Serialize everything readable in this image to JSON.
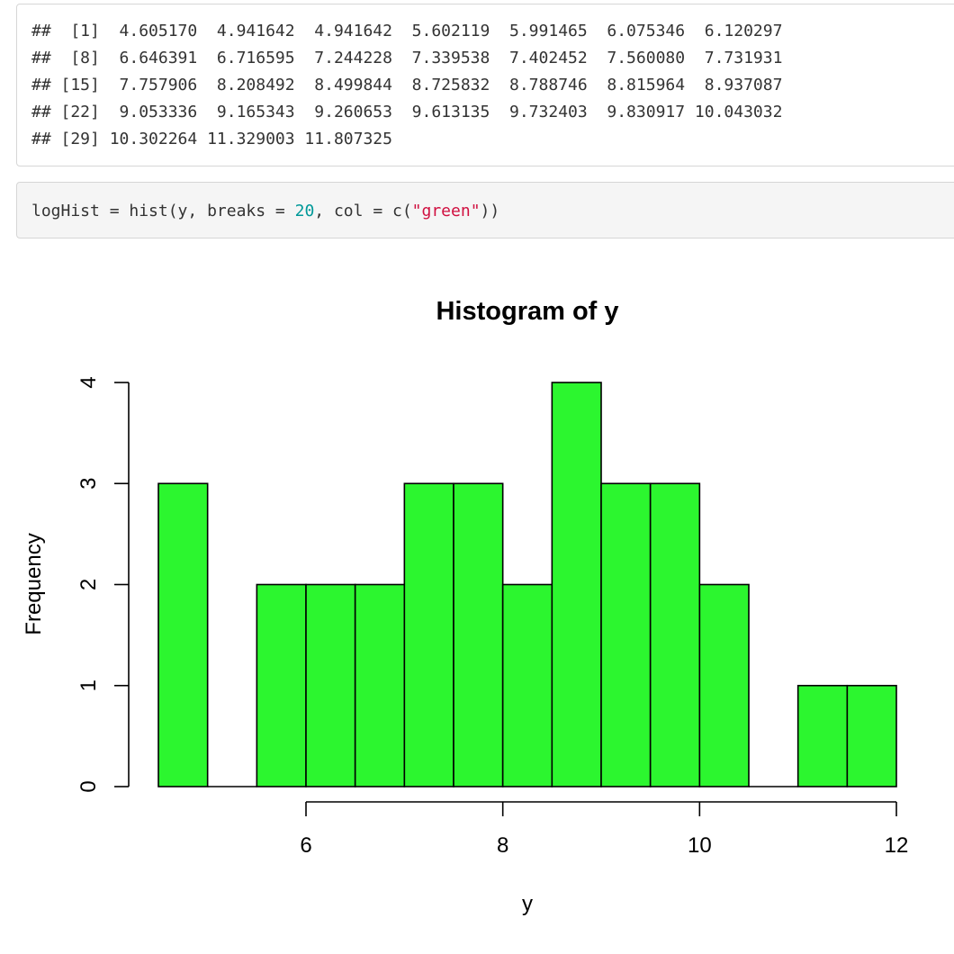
{
  "output": {
    "lines": [
      "##  [1]  4.605170  4.941642  4.941642  5.602119  5.991465  6.075346  6.120297",
      "##  [8]  6.646391  6.716595  7.244228  7.339538  7.402452  7.560080  7.731931",
      "## [15]  7.757906  8.208492  8.499844  8.725832  8.788746  8.815964  8.937087",
      "## [22]  9.053336  9.165343  9.260653  9.613135  9.732403  9.830917 10.043032",
      "## [29] 10.302264 11.329003 11.807325"
    ]
  },
  "code": {
    "before_num": "logHist = hist(y, breaks = ",
    "num": "20",
    "mid": ", col = c(",
    "str": "\"green\"",
    "after": "))"
  },
  "chart_data": {
    "type": "bar",
    "title": "Histogram of y",
    "xlabel": "y",
    "ylabel": "Frequency",
    "bin_edges": [
      4.5,
      5.0,
      5.5,
      6.0,
      6.5,
      7.0,
      7.5,
      8.0,
      8.5,
      9.0,
      9.5,
      10.0,
      10.5,
      11.0,
      11.5,
      12.0
    ],
    "counts": [
      3,
      0,
      2,
      2,
      2,
      3,
      3,
      2,
      4,
      3,
      3,
      2,
      0,
      1,
      1
    ],
    "bar_color": "#2cf62f",
    "xlim": [
      4.5,
      12.0
    ],
    "ylim": [
      0,
      4
    ],
    "x_ticks": [
      6,
      8,
      10,
      12
    ],
    "x_tick_labels": [
      "6",
      "8",
      "10",
      "12"
    ],
    "y_ticks": [
      0,
      1,
      2,
      3,
      4
    ],
    "y_tick_labels": [
      "0",
      "1",
      "2",
      "3",
      "4"
    ],
    "grid": false,
    "legend": "none"
  }
}
